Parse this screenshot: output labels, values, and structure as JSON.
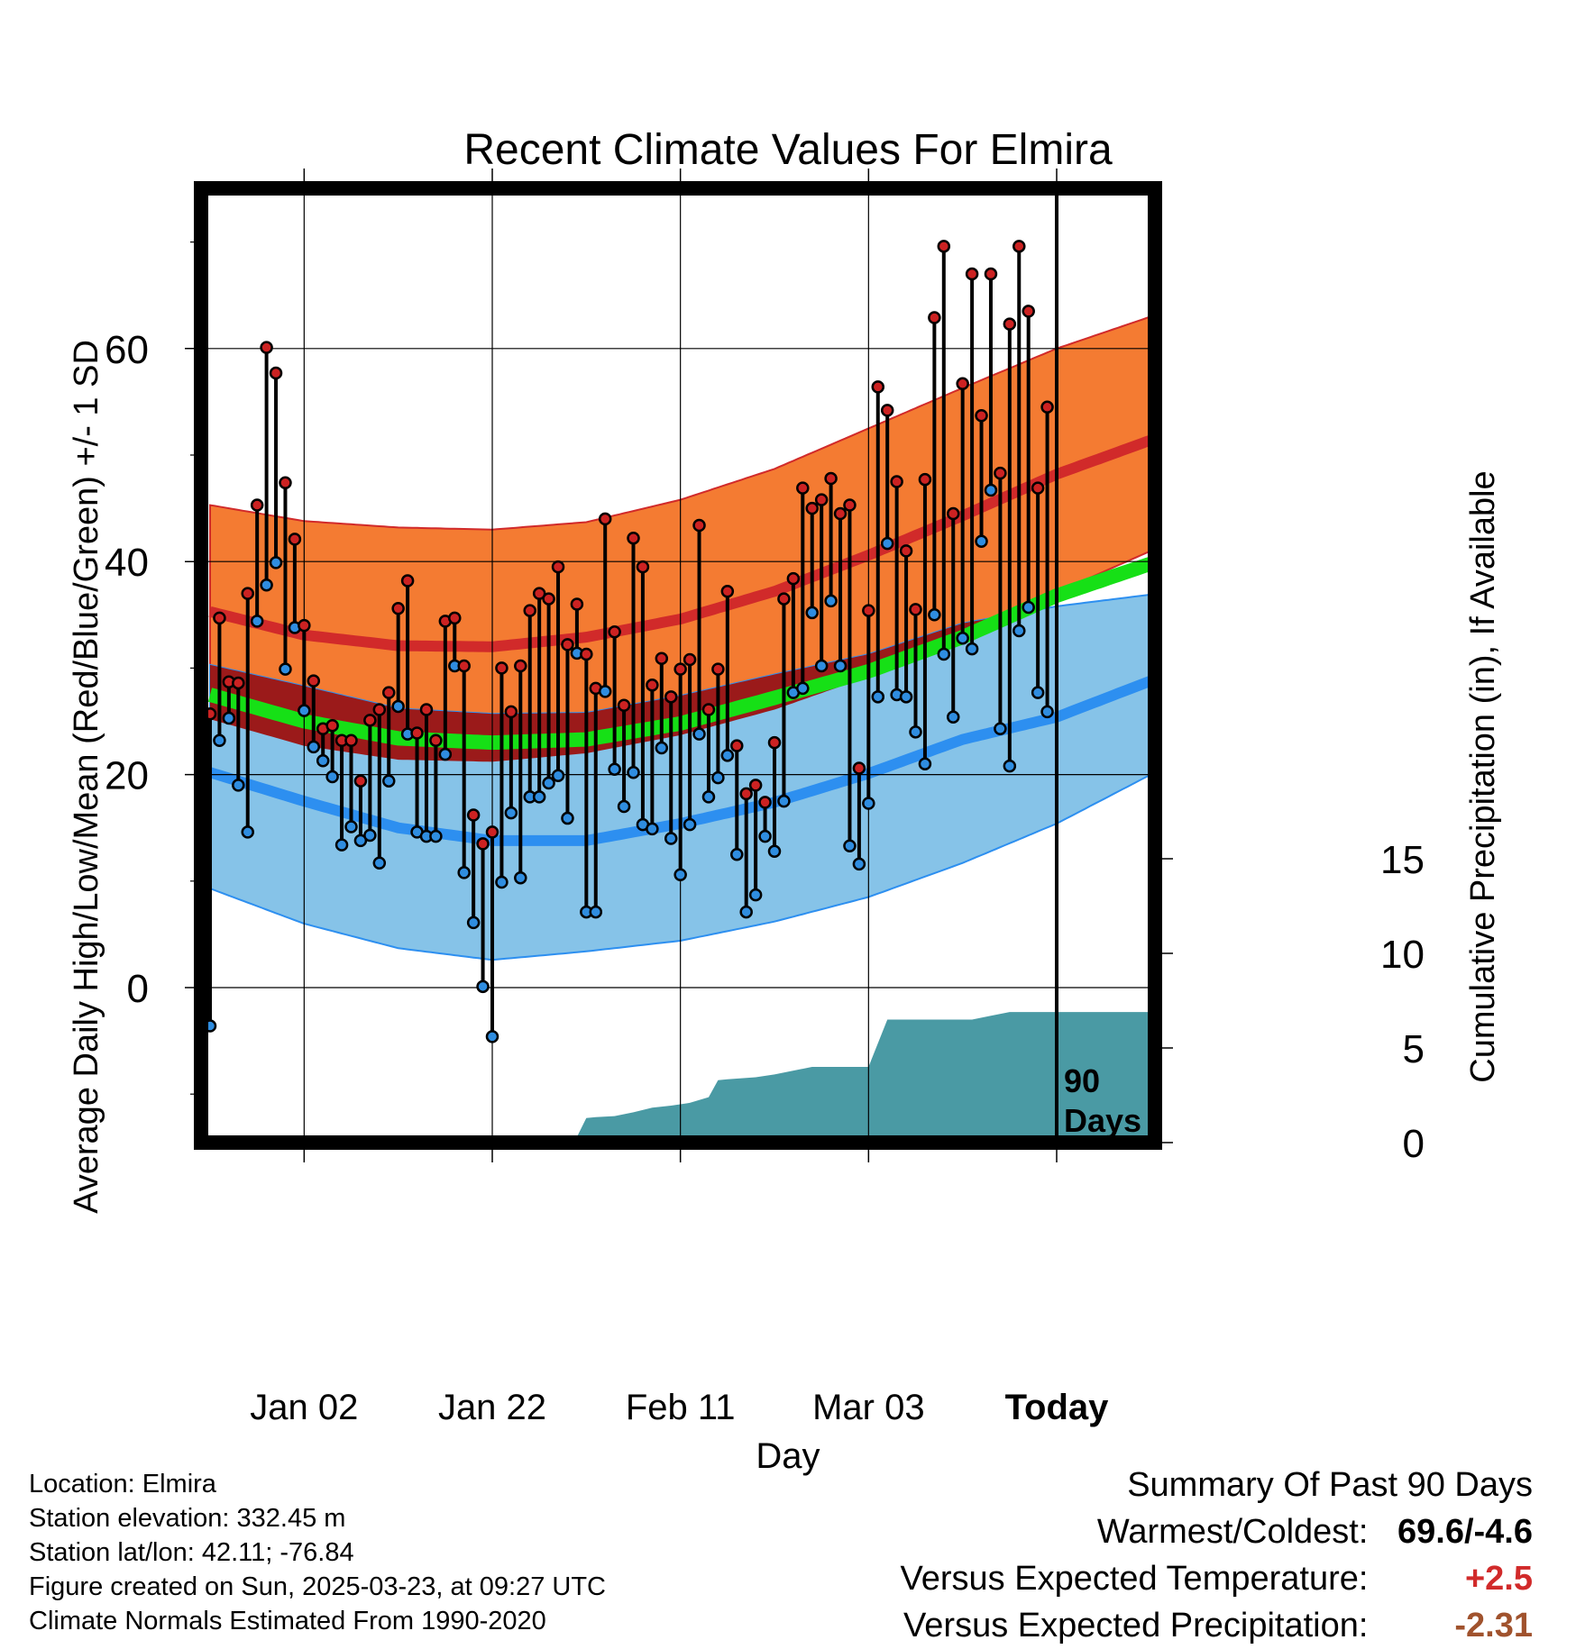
{
  "chart_data": {
    "type": "line",
    "title": "Recent Climate Values For Elmira",
    "xlabel": "Day",
    "ylabel": "Average Daily High/Low/Mean (Red/Blue/Green) +/- 1 SD",
    "y2label": "Cumulative Precipitation (in), If Available",
    "xlim_days": [
      -10,
      91
    ],
    "ylim": [
      -14,
      75
    ],
    "y_ticks": [
      0,
      20,
      40,
      60
    ],
    "y2lim": [
      0,
      22.5
    ],
    "y2_ticks": [
      0,
      5,
      10,
      15
    ],
    "x_ticks": [
      {
        "label": "Jan 02",
        "day": 0
      },
      {
        "label": "Jan 22",
        "day": 20
      },
      {
        "label": "Feb 11",
        "day": 40
      },
      {
        "label": "Mar 03",
        "day": 60
      },
      {
        "label": "Today",
        "day": 80
      }
    ],
    "grid": true,
    "today_day": 80,
    "window_label": "90\nDays",
    "colors": {
      "high_band": "#f47b32",
      "high_mean": "#d12a2a",
      "low_band": "#86c3e8",
      "low_mean": "#2d8ff0",
      "mean_line": "#16e016",
      "overlap": "#9b1a1a",
      "precip": "#4a9aa4",
      "high_point": "#cc2222",
      "low_point": "#2f8de0"
    },
    "normals": {
      "day": [
        -10,
        0,
        10,
        20,
        30,
        40,
        50,
        60,
        70,
        80,
        90
      ],
      "high_mean": [
        35.3,
        33.1,
        32.1,
        32.0,
        32.9,
        34.6,
        37.2,
        40.6,
        44.3,
        48.2,
        51.4
      ],
      "high_plus_sd": [
        45.3,
        43.8,
        43.2,
        43.0,
        43.7,
        45.8,
        48.7,
        52.5,
        56.3,
        60.0,
        63.0
      ],
      "high_minus_sd": [
        25.2,
        22.7,
        21.4,
        21.2,
        22.0,
        23.7,
        26.1,
        29.2,
        32.6,
        37.1,
        41.0
      ],
      "low_mean": [
        20.2,
        17.5,
        15.0,
        13.8,
        13.8,
        15.4,
        17.4,
        20.1,
        23.3,
        25.4,
        28.8
      ],
      "low_plus_sd": [
        30.3,
        28.3,
        26.2,
        25.7,
        25.8,
        27.4,
        29.4,
        31.3,
        34.2,
        35.8,
        36.9
      ],
      "low_minus_sd": [
        9.3,
        6.0,
        3.7,
        2.6,
        3.4,
        4.4,
        6.2,
        8.5,
        11.7,
        15.4,
        20.0
      ],
      "mean_mean": [
        27.5,
        25.0,
        23.4,
        23.0,
        23.3,
        24.8,
        27.2,
        29.7,
        32.9,
        36.8,
        39.8
      ]
    },
    "series": [
      {
        "name": "High",
        "days": [
          -10,
          -9,
          -8,
          -7,
          -6,
          -5,
          -4,
          -3,
          -2,
          -1,
          0,
          1,
          2,
          3,
          4,
          5,
          6,
          7,
          8,
          9,
          10,
          11,
          12,
          13,
          14,
          15,
          16,
          17,
          18,
          19,
          20,
          21,
          22,
          23,
          24,
          25,
          26,
          27,
          28,
          29,
          30,
          31,
          32,
          33,
          34,
          35,
          36,
          37,
          38,
          39,
          40,
          41,
          42,
          43,
          44,
          45,
          46,
          47,
          48,
          49,
          50,
          51,
          52,
          53,
          54,
          55,
          56,
          57,
          58,
          59,
          60,
          61,
          62,
          63,
          64,
          65,
          66,
          67,
          68,
          69,
          70,
          71,
          72,
          73,
          74,
          75,
          76,
          77,
          78,
          79
        ],
        "values": [
          25.7,
          34.7,
          28.7,
          28.6,
          37.0,
          45.3,
          60.1,
          57.7,
          47.4,
          42.1,
          34.0,
          28.8,
          24.3,
          24.6,
          23.2,
          23.2,
          19.4,
          25.1,
          26.1,
          27.7,
          35.6,
          38.2,
          23.9,
          26.1,
          23.2,
          34.4,
          34.7,
          30.2,
          16.2,
          13.5,
          14.6,
          30.0,
          25.9,
          30.2,
          35.4,
          37.0,
          36.5,
          39.5,
          32.2,
          36.0,
          31.3,
          28.1,
          44.0,
          33.4,
          26.5,
          42.2,
          39.5,
          28.4,
          30.9,
          27.3,
          29.9,
          30.8,
          43.4,
          26.1,
          29.9,
          37.2,
          22.7,
          18.2,
          19.0,
          17.4,
          23.0,
          36.5,
          38.4,
          46.9,
          45.0,
          45.8,
          47.8,
          44.5,
          45.3,
          20.6,
          35.4,
          56.4,
          54.2,
          47.5,
          41.0,
          35.5,
          47.7,
          62.9,
          69.6,
          44.5,
          56.7,
          67.0,
          53.7,
          67.0,
          48.3,
          62.3,
          69.6,
          63.5,
          46.9,
          54.5
        ]
      },
      {
        "name": "Low",
        "days": [
          -10,
          -9,
          -8,
          -7,
          -6,
          -5,
          -4,
          -3,
          -2,
          -1,
          0,
          1,
          2,
          3,
          4,
          5,
          6,
          7,
          8,
          9,
          10,
          11,
          12,
          13,
          14,
          15,
          16,
          17,
          18,
          19,
          20,
          21,
          22,
          23,
          24,
          25,
          26,
          27,
          28,
          29,
          30,
          31,
          32,
          33,
          34,
          35,
          36,
          37,
          38,
          39,
          40,
          41,
          42,
          43,
          44,
          45,
          46,
          47,
          48,
          49,
          50,
          51,
          52,
          53,
          54,
          55,
          56,
          57,
          58,
          59,
          60,
          61,
          62,
          63,
          64,
          65,
          66,
          67,
          68,
          69,
          70,
          71,
          72,
          73,
          74,
          75,
          76,
          77,
          78,
          79
        ],
        "values": [
          -3.6,
          23.2,
          25.3,
          19.0,
          14.6,
          34.4,
          37.8,
          39.9,
          29.9,
          33.8,
          26.0,
          22.6,
          21.3,
          19.8,
          13.4,
          15.1,
          13.8,
          14.3,
          11.7,
          19.4,
          26.4,
          23.8,
          14.6,
          14.2,
          14.2,
          21.9,
          30.2,
          10.8,
          6.1,
          0.1,
          -4.6,
          9.9,
          16.4,
          10.3,
          17.9,
          17.9,
          19.2,
          19.9,
          15.9,
          31.4,
          7.1,
          7.1,
          27.8,
          20.5,
          17.0,
          20.2,
          15.3,
          14.9,
          22.5,
          14.0,
          10.6,
          15.3,
          23.8,
          17.9,
          19.7,
          21.8,
          12.5,
          7.1,
          8.7,
          14.2,
          12.8,
          17.5,
          27.7,
          28.1,
          35.2,
          30.2,
          36.3,
          30.2,
          13.3,
          11.6,
          17.3,
          27.3,
          41.7,
          27.5,
          27.3,
          24.0,
          21.0,
          35.0,
          31.3,
          25.4,
          32.8,
          31.8,
          41.9,
          46.7,
          24.3,
          20.8,
          33.5,
          35.7,
          27.7,
          25.9
        ]
      }
    ],
    "precip": {
      "days": [
        -10,
        14,
        16,
        24,
        28,
        29,
        30,
        31,
        33,
        35,
        37,
        39,
        41,
        43,
        44,
        45,
        48,
        50,
        53,
        54,
        56,
        58,
        60,
        62,
        67,
        71,
        73,
        75,
        81,
        90
      ],
      "values": [
        0,
        0,
        0.05,
        0.1,
        0.3,
        0.3,
        1.3,
        1.35,
        1.4,
        1.6,
        1.85,
        1.95,
        2.1,
        2.4,
        3.3,
        3.35,
        3.45,
        3.6,
        3.9,
        4.0,
        4.0,
        4.0,
        4.0,
        6.5,
        6.5,
        6.5,
        6.7,
        6.9,
        6.9,
        6.9
      ]
    }
  },
  "footer": {
    "location": "Location: Elmira",
    "elevation": "Station elevation: 332.45 m",
    "latlon": "Station lat/lon: 42.11; -76.84",
    "created": "Figure created on Sun, 2025-03-23, at 09:27 UTC",
    "normals_note": "Climate Normals Estimated From 1990-2020"
  },
  "summary": {
    "title": "Summary Of Past 90 Days",
    "warmest_label": "Warmest/Coldest:",
    "warmest_value": "69.6/-4.6",
    "temp_label": "Versus Expected Temperature:",
    "temp_value": "+2.5",
    "temp_color": "#d12a2a",
    "precip_label": "Versus Expected Precipitation:",
    "precip_value": "-2.31",
    "precip_color": "#a0522d"
  }
}
